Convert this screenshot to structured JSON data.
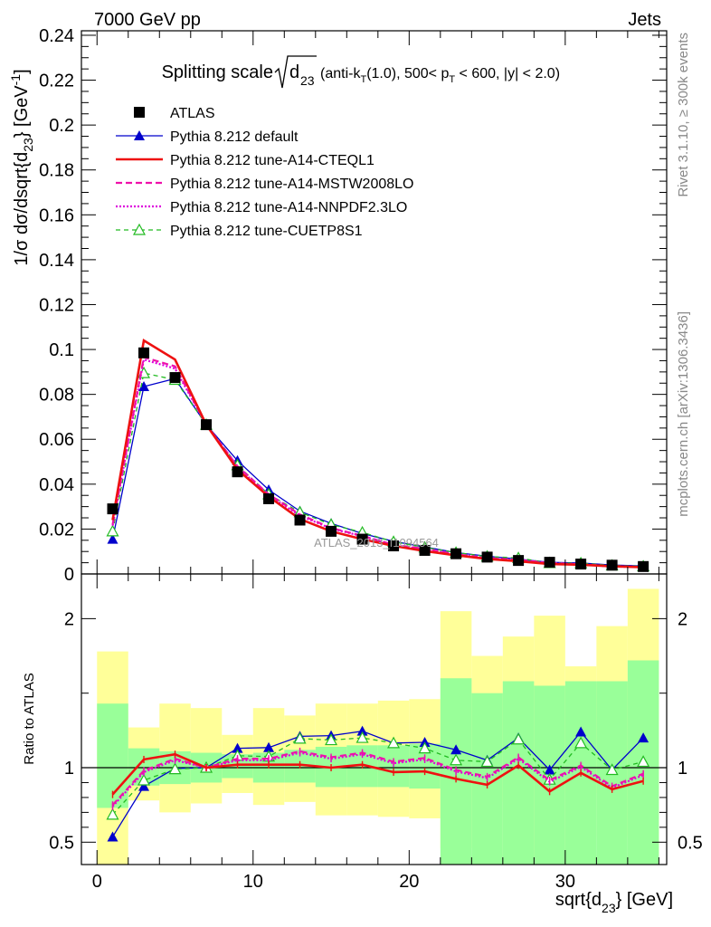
{
  "header": {
    "left": "7000 GeV pp",
    "right": "Jets"
  },
  "title": {
    "prefix": "Splitting scale",
    "sub": "(anti-k",
    "kt_sub": "T",
    "cut1": "(1.0), 500< p",
    "pt_sub": "T",
    "cut2": " < 600, |y| < 2.0)",
    "d_label": "d",
    "d_sub": "23"
  },
  "side_labels": {
    "rivet": "Rivet 3.1.10, ≥ 300k events",
    "mcplots": "mcplots.cern.ch [arXiv:1306.3436]"
  },
  "watermark": "ATLAS_2013_I1094564",
  "colors": {
    "atlas": "#000000",
    "default": "#0000cc",
    "cteql1": "#ee1111",
    "mstw": "#ee11aa",
    "nnpdf": "#dd00dd",
    "cuetp8s1": "#22bb22",
    "band_green": "#99ff99",
    "band_yellow": "#ffff99"
  },
  "chart_data": [
    {
      "type": "line",
      "panel": "main",
      "ylabel": "1/σ dσ/dsqrt{d23} [GeV-1]",
      "ylabel_parts": {
        "a": "1/σ dσ/dsqrt{d",
        "a_sub": "23",
        "b": "} [GeV",
        "b_sup": "-1",
        "c": "]"
      },
      "xlim": [
        -1,
        36.5
      ],
      "ylim": [
        0,
        0.242
      ],
      "yticks": [
        0,
        0.02,
        0.04,
        0.06,
        0.08,
        0.1,
        0.12,
        0.14,
        0.16,
        0.18,
        0.2,
        0.22,
        0.24
      ],
      "ytick_labels": [
        "0",
        "0.02",
        "0.04",
        "0.06",
        "0.08",
        "0.1",
        "0.12",
        "0.14",
        "0.16",
        "0.18",
        "0.2",
        "0.22",
        "0.24"
      ],
      "x": [
        1,
        3,
        5,
        7,
        9,
        11,
        13,
        15,
        17,
        19,
        21,
        23,
        25,
        27,
        29,
        31,
        33,
        35
      ],
      "data": {
        "name": "ATLAS",
        "values": [
          0.029,
          0.0985,
          0.0875,
          0.0665,
          0.0455,
          0.0335,
          0.024,
          0.019,
          0.0155,
          0.0125,
          0.0105,
          0.009,
          0.0075,
          0.006,
          0.0052,
          0.0044,
          0.0039,
          0.0033
        ]
      },
      "series": [
        {
          "name": "Pythia 8.212 default",
          "style": "default",
          "values": [
            0.0155,
            0.0835,
            0.087,
            0.0665,
            0.0505,
            0.0375,
            0.028,
            0.0225,
            0.018,
            0.0145,
            0.012,
            0.0095,
            0.0079,
            0.0066,
            0.0052,
            0.0049,
            0.004,
            0.0036
          ]
        },
        {
          "name": "Pythia 8.212 tune-A14-CTEQL1",
          "style": "cteql1",
          "values": [
            0.024,
            0.104,
            0.0955,
            0.0665,
            0.0465,
            0.0345,
            0.0245,
            0.019,
            0.0155,
            0.0125,
            0.0102,
            0.0083,
            0.0067,
            0.0057,
            0.0044,
            0.0041,
            0.0034,
            0.003
          ]
        },
        {
          "name": "Pythia 8.212 tune-A14-MSTW2008LO",
          "style": "mstw",
          "values": [
            0.022,
            0.0965,
            0.0925,
            0.0665,
            0.048,
            0.0355,
            0.0265,
            0.0205,
            0.017,
            0.013,
            0.0112,
            0.0088,
            0.0071,
            0.0063,
            0.0049,
            0.0043,
            0.0034,
            0.0031
          ]
        },
        {
          "name": "Pythia 8.212 tune-A14-NNPDF2.3LO",
          "style": "nnpdf",
          "values": [
            0.0215,
            0.0955,
            0.0915,
            0.0665,
            0.0475,
            0.035,
            0.026,
            0.0202,
            0.0168,
            0.0128,
            0.011,
            0.0087,
            0.007,
            0.0061,
            0.0047,
            0.0042,
            0.0033,
            0.003
          ]
        },
        {
          "name": "Pythia 8.212 tune-CUETP8S1",
          "style": "cuetp8s1",
          "values": [
            0.019,
            0.0895,
            0.0865,
            0.0665,
            0.0485,
            0.0355,
            0.0275,
            0.022,
            0.0185,
            0.0143,
            0.0118,
            0.0095,
            0.0078,
            0.0071,
            0.0049,
            0.0048,
            0.0038,
            0.0034
          ]
        }
      ],
      "legend": [
        {
          "label": "ATLAS",
          "style": "atlas"
        },
        {
          "label": "Pythia 8.212 default",
          "style": "default"
        },
        {
          "label": "Pythia 8.212 tune-A14-CTEQL1",
          "style": "cteql1"
        },
        {
          "label": "Pythia 8.212 tune-A14-MSTW2008LO",
          "style": "mstw"
        },
        {
          "label": "Pythia 8.212 tune-A14-NNPDF2.3LO",
          "style": "nnpdf"
        },
        {
          "label": "Pythia 8.212 tune-CUETP8S1",
          "style": "cuetp8s1"
        }
      ],
      "legend_position": "top-left"
    },
    {
      "type": "line",
      "panel": "ratio",
      "ylabel": "Ratio to ATLAS",
      "xlabel": "sqrt{d23} [GeV]",
      "xlabel_parts": {
        "a": "sqrt{d",
        "a_sub": "23",
        "b": "} [GeV]"
      },
      "xlim": [
        -1,
        36.5
      ],
      "ylim": [
        0.35,
        2.3
      ],
      "yticks": [
        0.5,
        1,
        2
      ],
      "ytick_labels": [
        "0.5",
        "1",
        "2"
      ],
      "xticks": [
        0,
        10,
        20,
        30
      ],
      "xtick_labels": [
        "0",
        "10",
        "20",
        "30"
      ],
      "bin_edges": [
        0,
        2,
        4,
        6,
        8,
        10,
        12,
        14,
        16,
        18,
        20,
        22,
        24,
        26,
        28,
        30,
        32,
        34,
        36
      ],
      "band_1sigma": {
        "lo": [
          0.73,
          0.88,
          0.89,
          0.9,
          0.93,
          0.9,
          0.9,
          0.87,
          0.87,
          0.87,
          0.86,
          0.35,
          0.35,
          0.35,
          0.35,
          0.35,
          0.35,
          0.35
        ],
        "hi": [
          1.43,
          1.13,
          1.11,
          1.1,
          1.09,
          1.1,
          1.12,
          1.14,
          1.15,
          1.15,
          1.16,
          1.6,
          1.5,
          1.58,
          1.55,
          1.58,
          1.58,
          1.72
        ]
      },
      "band_2sigma": {
        "lo": [
          0.35,
          0.78,
          0.7,
          0.76,
          0.83,
          0.75,
          0.77,
          0.68,
          0.68,
          0.67,
          0.66,
          0.46,
          0.77,
          0.35,
          0.42,
          0.83,
          0.54,
          0.35
        ],
        "hi": [
          1.78,
          1.27,
          1.43,
          1.4,
          1.22,
          1.4,
          1.35,
          1.43,
          1.43,
          1.45,
          1.46,
          2.05,
          1.75,
          1.88,
          2.02,
          1.68,
          1.95,
          2.2
        ]
      },
      "series": [
        {
          "name": "Pythia 8.212 default",
          "style": "default",
          "values": [
            0.535,
            0.875,
            0.995,
            1.0,
            1.13,
            1.135,
            1.21,
            1.215,
            1.245,
            1.165,
            1.17,
            1.12,
            1.05,
            1.2,
            0.985,
            1.24,
            0.985,
            1.2
          ]
        },
        {
          "name": "Pythia 8.212 tune-A14-CTEQL1",
          "style": "cteql1",
          "values": [
            0.82,
            1.055,
            1.09,
            1.0,
            1.02,
            1.02,
            1.02,
            1.0,
            1.02,
            0.97,
            0.975,
            0.925,
            0.885,
            1.015,
            0.84,
            0.965,
            0.855,
            0.91
          ]
        },
        {
          "name": "Pythia 8.212 tune-A14-MSTW2008LO",
          "style": "mstw",
          "values": [
            0.75,
            0.98,
            1.06,
            1.0,
            1.06,
            1.06,
            1.11,
            1.07,
            1.1,
            1.04,
            1.065,
            0.985,
            0.94,
            1.07,
            0.915,
            1.015,
            0.875,
            0.96
          ]
        },
        {
          "name": "Pythia 8.212 tune-A14-NNPDF2.3LO",
          "style": "nnpdf",
          "values": [
            0.74,
            0.97,
            1.05,
            1.0,
            1.05,
            1.05,
            1.1,
            1.06,
            1.09,
            1.03,
            1.055,
            0.975,
            0.93,
            1.06,
            0.905,
            1.005,
            0.865,
            0.95
          ]
        },
        {
          "name": "Pythia 8.212 tune-CUETP8S1",
          "style": "cuetp8s1",
          "values": [
            0.685,
            0.915,
            0.99,
            1.0,
            1.08,
            1.075,
            1.195,
            1.185,
            1.2,
            1.165,
            1.13,
            1.05,
            1.04,
            1.19,
            0.92,
            1.165,
            0.985,
            1.04
          ]
        }
      ]
    }
  ]
}
